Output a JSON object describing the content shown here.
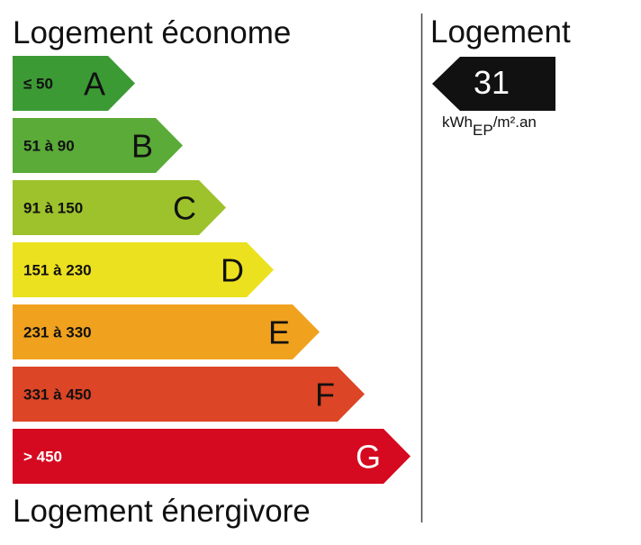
{
  "header": {
    "title": "Logement économe"
  },
  "footer": {
    "title": "Logement énergivore"
  },
  "classes": [
    {
      "range": "≤ 50",
      "letter": "A",
      "color": "#3c9a35",
      "text_color": "#111111"
    },
    {
      "range": "51 à 90",
      "letter": "B",
      "color": "#5aab38",
      "text_color": "#111111"
    },
    {
      "range": "91 à 150",
      "letter": "C",
      "color": "#9dc22b",
      "text_color": "#111111"
    },
    {
      "range": "151 à 230",
      "letter": "D",
      "color": "#ece11f",
      "text_color": "#111111"
    },
    {
      "range": "231 à 330",
      "letter": "E",
      "color": "#f0a21f",
      "text_color": "#111111"
    },
    {
      "range": "331 à 450",
      "letter": "F",
      "color": "#dc4525",
      "text_color": "#111111"
    },
    {
      "range": "> 450",
      "letter": "G",
      "color": "#d5091f",
      "text_color": "#ffffff"
    }
  ],
  "panel": {
    "title": "Logement",
    "value": "31",
    "unit_main": "kWh",
    "unit_sub": "EP",
    "unit_rest": "/m².an"
  }
}
